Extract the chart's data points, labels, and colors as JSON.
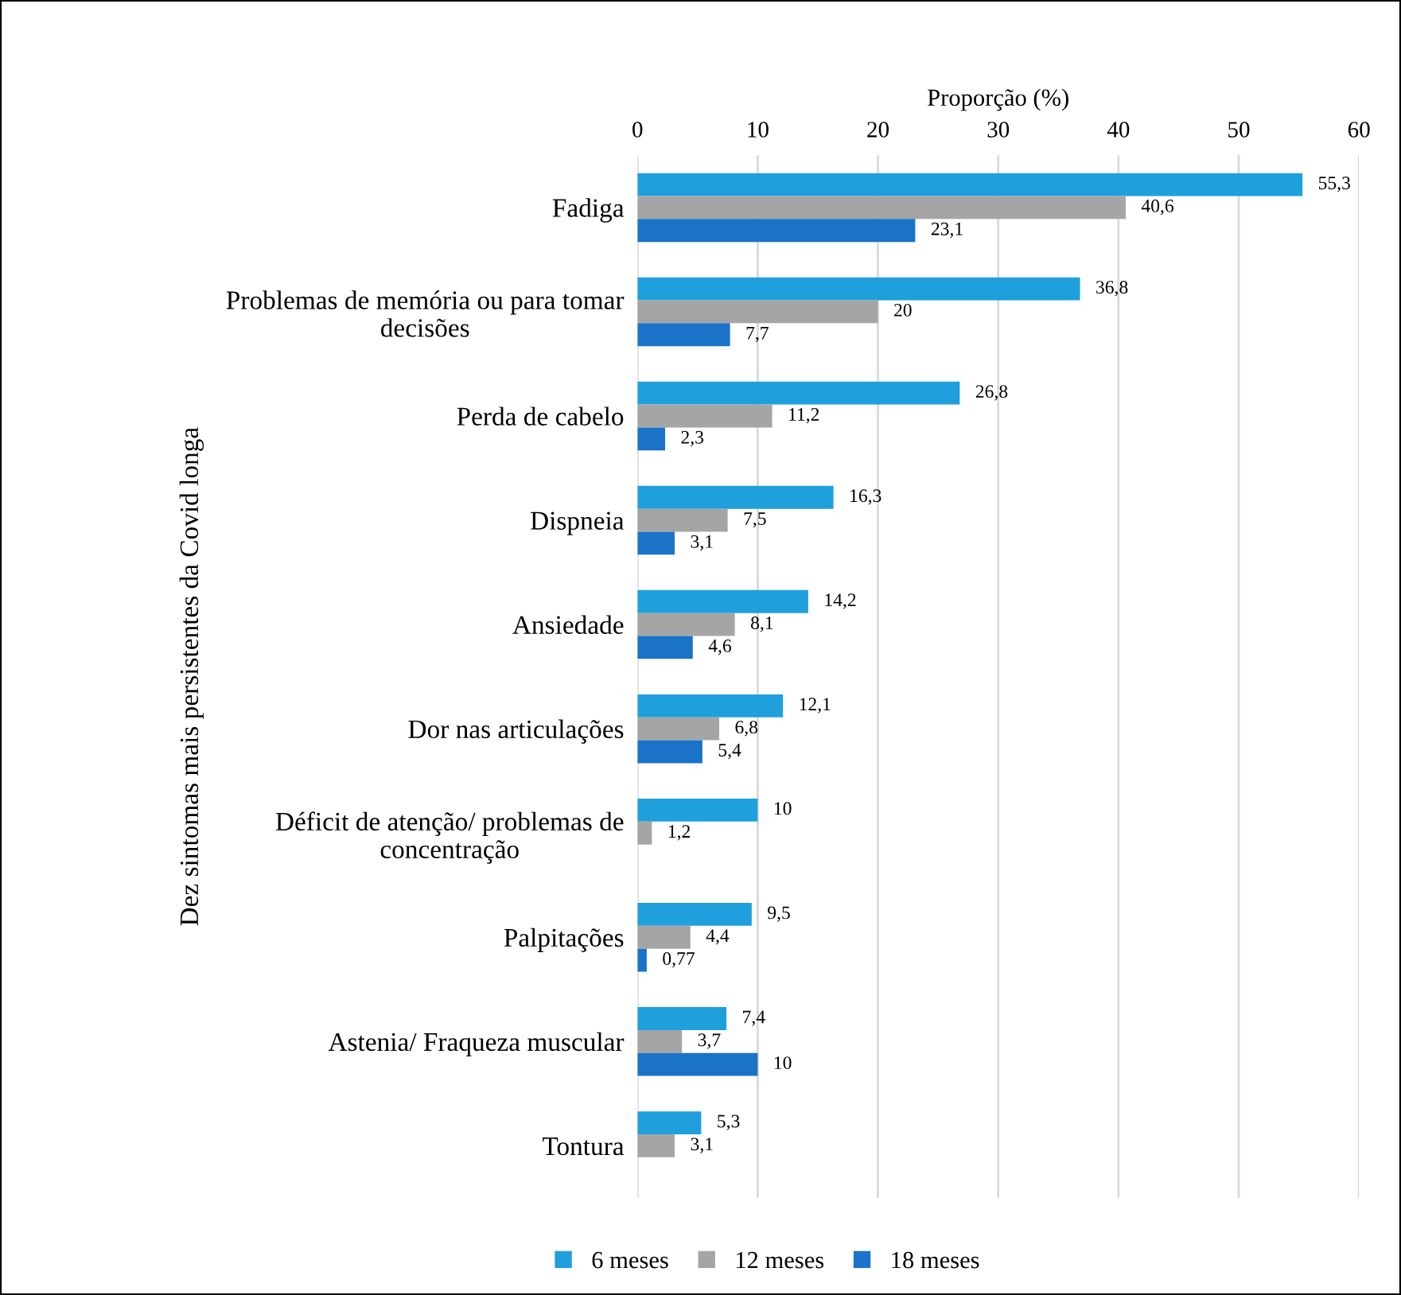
{
  "chart_data": {
    "type": "bar",
    "orientation": "horizontal",
    "xlabel": "Proporção (%)",
    "ylabel": "Dez sintomas mais persistentes da Covid longa",
    "categories": [
      "Fadiga",
      "Problemas de memória ou para tomar\ndecisões",
      "Perda de cabelo",
      "Dispneia",
      "Ansiedade",
      "Dor nas articulações",
      "Déficit de atenção/ problemas de\nconcentração",
      "Palpitações",
      "Astenia/ Fraqueza muscular",
      "Tontura"
    ],
    "series": [
      {
        "name": "6 meses",
        "color": "#1f9fdc",
        "values": [
          55.3,
          36.8,
          26.8,
          16.3,
          14.2,
          12.1,
          10,
          9.5,
          7.4,
          5.3
        ],
        "value_labels": [
          "55,3",
          "36,8",
          "26,8",
          "16,3",
          "14,2",
          "12,1",
          "10",
          "9,5",
          "7,4",
          "5,3"
        ]
      },
      {
        "name": "12 meses",
        "color": "#a5a5a5",
        "values": [
          40.6,
          20,
          11.2,
          7.5,
          8.1,
          6.8,
          1.2,
          4.4,
          3.7,
          3.1
        ],
        "value_labels": [
          "40,6",
          "20",
          "11,2",
          "7,5",
          "8,1",
          "6,8",
          "1,2",
          "4,4",
          "3,7",
          "3,1"
        ]
      },
      {
        "name": "18 meses",
        "color": "#1a73c8",
        "values": [
          23.1,
          7.7,
          2.3,
          3.1,
          4.6,
          5.4,
          null,
          0.77,
          10,
          null
        ],
        "value_labels": [
          "23,1",
          "7,7",
          "2,3",
          "3,1",
          "4,6",
          "5,4",
          null,
          "0,77",
          "10",
          null
        ]
      }
    ],
    "xlim": [
      0,
      60
    ],
    "xticks": [
      0,
      10,
      20,
      30,
      40,
      50,
      60
    ],
    "grid": "x",
    "legend": "bottom"
  }
}
